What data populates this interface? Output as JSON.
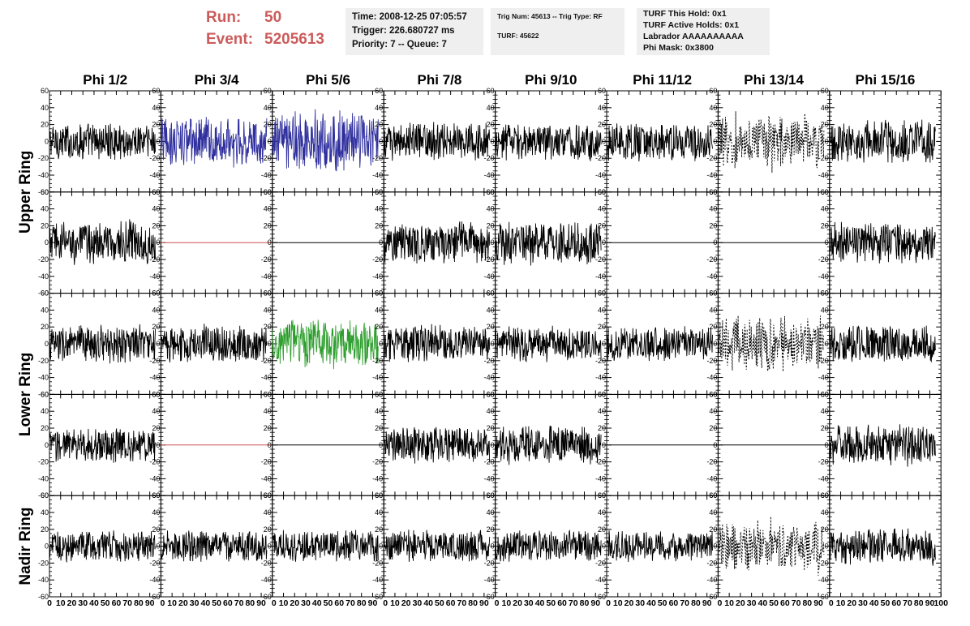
{
  "header": {
    "run_label": "Run:",
    "run_value": "50",
    "event_label": "Event:",
    "event_value": "5205613"
  },
  "info_boxes": {
    "time_box": [
      "Time: 2008-12-25 07:05:57",
      "Trigger: 226.680727 ms",
      "Priority: 7 -- Queue: 7"
    ],
    "trig_box": [
      "Trig Num: 45613 -- Trig Type: RF",
      "",
      "TURF: 45622"
    ],
    "turf_box": [
      "TURF This Hold: 0x1",
      "TURF Active Holds: 0x1",
      "Labrador AAAAAAAAAA",
      "Phi Mask: 0x3800"
    ]
  },
  "colors": {
    "header_red": "#cc5b5b",
    "box_bg": "#efefef",
    "trace_black": "#000000",
    "trace_blue": "#2f2f9e",
    "trace_green": "#2e9e2e",
    "trace_red": "#d05050"
  },
  "chart_data": {
    "type": "line",
    "columns": [
      "Phi 1/2",
      "Phi 3/4",
      "Phi 5/6",
      "Phi 7/8",
      "Phi 9/10",
      "Phi 11/12",
      "Phi 13/14",
      "Phi 15/16"
    ],
    "row_groups": [
      {
        "label": "Upper Ring",
        "rows": [
          0,
          1
        ]
      },
      {
        "label": "Lower Ring",
        "rows": [
          2,
          3
        ]
      },
      {
        "label": "Nadir Ring",
        "rows": [
          4
        ]
      }
    ],
    "xlim": [
      0,
      100
    ],
    "ylim": [
      -60,
      60
    ],
    "x_ticks": [
      0,
      10,
      20,
      30,
      40,
      50,
      60,
      70,
      80,
      90,
      100
    ],
    "x_tick_labels": [
      "0",
      "10",
      "20",
      "30",
      "40",
      "50",
      "60",
      "70",
      "80",
      "90",
      "100"
    ],
    "y_ticks": [
      -60,
      -40,
      -20,
      0,
      20,
      40,
      60
    ],
    "y_tick_labels": [
      "-60",
      "-40",
      "-20",
      "0",
      "20",
      "40",
      "60"
    ],
    "n_samples": 260,
    "trace_x_range": [
      0,
      95
    ],
    "panels": [
      [
        "noise",
        "blue",
        "blue",
        "noise",
        "noise",
        "noise",
        "dashed",
        "noise"
      ],
      [
        "noise",
        "flat-red",
        "flat",
        "noise",
        "noise",
        "flat",
        "flat",
        "noise"
      ],
      [
        "noise",
        "noise",
        "green",
        "noise",
        "noise",
        "noise",
        "dashed",
        "noise"
      ],
      [
        "noise",
        "flat-red",
        "flat",
        "noise",
        "noise",
        "flat",
        "flat",
        "noise"
      ],
      [
        "noise",
        "noise",
        "noise",
        "noise",
        "noise",
        "noise",
        "dashed",
        "noise"
      ]
    ],
    "amplitudes": [
      [
        12,
        16,
        20,
        12,
        12,
        12,
        15,
        14
      ],
      [
        14,
        0,
        0,
        14,
        14,
        0,
        0,
        13
      ],
      [
        12,
        12,
        16,
        12,
        11,
        11,
        15,
        12
      ],
      [
        11,
        0,
        0,
        12,
        12,
        0,
        0,
        13
      ],
      [
        10,
        10,
        10,
        10,
        10,
        10,
        14,
        12
      ]
    ]
  }
}
